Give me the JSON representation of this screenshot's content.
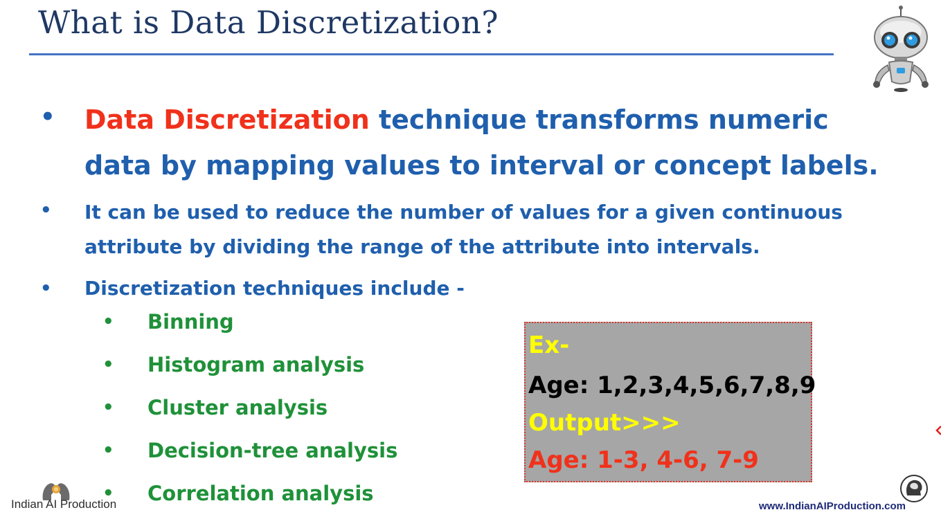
{
  "slide": {
    "title": "What is Data Discretization?",
    "bullets": [
      {
        "highlight": "Data Discretization",
        "text": " technique transforms numeric data by mapping values to interval or concept labels."
      },
      {
        "text": "It can be used to reduce the number of values for a given continuous attribute by dividing the range of the attribute into intervals."
      },
      {
        "text": "Discretization techniques include -",
        "sub_items": [
          "Binning",
          "Histogram analysis",
          "Cluster analysis",
          "Decision-tree analysis",
          "Correlation analysis"
        ]
      }
    ],
    "bullet_symbol": "•",
    "example_box": {
      "heading": "Ex-",
      "input": "Age: 1,2,3,4,5,6,7,8,9",
      "output_label": "Output>>>",
      "output": "Age: 1-3, 4-6, 7-9"
    }
  },
  "branding": {
    "left_logo_text": "Indian AI Production",
    "website": "www.IndianAIProduction.com",
    "robot_icon": "robot-icon",
    "left_logo_icon": "heads-logo-icon",
    "right_logo_icon": "brain-head-icon"
  },
  "colors": {
    "title": "#1f3864",
    "rule": "#4472c4",
    "body_blue": "#1f5fad",
    "highlight_red": "#f0311b",
    "sub_green": "#1f9139",
    "box_gray": "#a6a6a6",
    "box_yellow": "#ffff00"
  }
}
